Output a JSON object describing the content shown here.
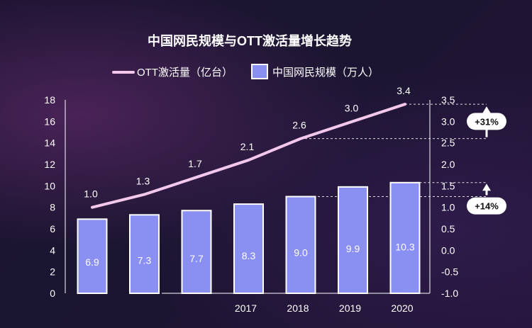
{
  "chart_data": {
    "type": "bar+line",
    "title": "中国网民规模与OTT激活量增长趋势",
    "categories": [
      "",
      "",
      "",
      "2017",
      "2018",
      "2019",
      "2020"
    ],
    "bar_series": {
      "name": "中国网民规模（万人）",
      "values": [
        6.9,
        7.3,
        7.7,
        8.3,
        9.0,
        9.9,
        10.3
      ],
      "labels": [
        "6.9",
        "7.3",
        "7.7",
        "8.3",
        "9.0",
        "9.9",
        "10.3"
      ],
      "color": "#8a8ff2"
    },
    "line_series": {
      "name": "OTT激活量（亿台）",
      "values": [
        1.0,
        1.3,
        1.7,
        2.1,
        2.6,
        3.0,
        3.4
      ],
      "labels": [
        "1.0",
        "1.3",
        "1.7",
        "2.1",
        "2.6",
        "3.0",
        "3.4"
      ],
      "color": "#f3c8ec"
    },
    "left_axis": {
      "ticks": [
        "0",
        "2",
        "4",
        "6",
        "8",
        "10",
        "12",
        "14",
        "16",
        "18"
      ],
      "ylim": [
        0,
        18
      ]
    },
    "right_axis": {
      "ticks": [
        "-1.0",
        "-0.5",
        "0.0",
        "0.5",
        "1.0",
        "1.5",
        "2.0",
        "2.5",
        "3.0",
        "3.5"
      ],
      "ylim": [
        -1.0,
        3.5
      ]
    },
    "annotations": [
      {
        "label": "+31%",
        "axis": "right",
        "from": 2.6,
        "to": 3.4
      },
      {
        "label": "+14%",
        "axis": "right",
        "from": 1.25,
        "to": 1.6
      }
    ],
    "legend_position": "top"
  }
}
